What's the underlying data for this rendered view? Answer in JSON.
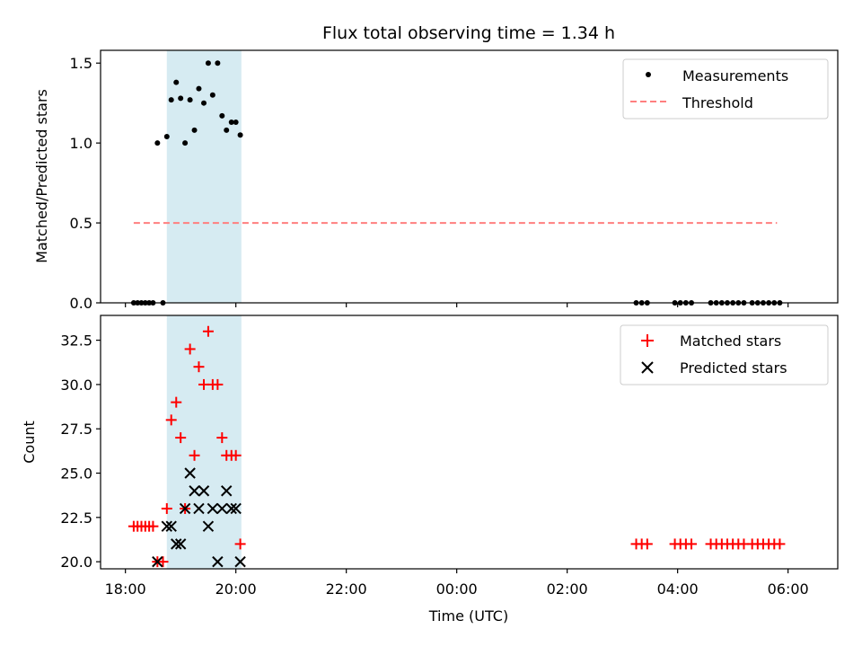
{
  "chart_data": {
    "title": "Flux total observing time = 1.34 h",
    "xlabel": "Time (UTC)",
    "x_unit": "hours since 18:00 UTC",
    "x_ticks": [
      {
        "value": 0,
        "label": "18:00"
      },
      {
        "value": 2,
        "label": "20:00"
      },
      {
        "value": 4,
        "label": "22:00"
      },
      {
        "value": 6,
        "label": "00:00"
      },
      {
        "value": 8,
        "label": "02:00"
      },
      {
        "value": 10,
        "label": "04:00"
      },
      {
        "value": 12,
        "label": "06:00"
      }
    ],
    "xlim": [
      -0.45,
      12.9
    ],
    "highlight_span": {
      "x0": 0.75,
      "x1": 2.1,
      "color": "#add8e6"
    },
    "panels": [
      {
        "type": "scatter",
        "ylabel": "Matched/Predicted stars",
        "ylim": [
          0,
          1.58
        ],
        "y_ticks": [
          {
            "value": 0,
            "label": "0.0"
          },
          {
            "value": 0.5,
            "label": "0.5"
          },
          {
            "value": 1.0,
            "label": "1.0"
          },
          {
            "value": 1.5,
            "label": "1.5"
          }
        ],
        "threshold": {
          "name": "Threshold",
          "value": 0.5,
          "x0": 0.15,
          "x1": 11.8,
          "color": "#ff7f7f"
        },
        "series": [
          {
            "name": "Measurements",
            "marker": "dot",
            "color": "#000000",
            "points": [
              [
                0.15,
                0
              ],
              [
                0.22,
                0
              ],
              [
                0.29,
                0
              ],
              [
                0.36,
                0
              ],
              [
                0.43,
                0
              ],
              [
                0.5,
                0
              ],
              [
                0.68,
                0
              ],
              [
                0.58,
                1.0
              ],
              [
                0.75,
                1.04
              ],
              [
                0.83,
                1.27
              ],
              [
                0.92,
                1.38
              ],
              [
                1.0,
                1.28
              ],
              [
                1.08,
                1.0
              ],
              [
                1.17,
                1.27
              ],
              [
                1.25,
                1.08
              ],
              [
                1.33,
                1.34
              ],
              [
                1.42,
                1.25
              ],
              [
                1.5,
                1.5
              ],
              [
                1.58,
                1.3
              ],
              [
                1.67,
                1.5
              ],
              [
                1.75,
                1.17
              ],
              [
                1.83,
                1.08
              ],
              [
                1.92,
                1.13
              ],
              [
                2.0,
                1.13
              ],
              [
                2.08,
                1.05
              ],
              [
                9.25,
                0
              ],
              [
                9.35,
                0
              ],
              [
                9.45,
                0
              ],
              [
                9.95,
                0
              ],
              [
                10.05,
                0
              ],
              [
                10.15,
                0
              ],
              [
                10.25,
                0
              ],
              [
                10.6,
                0
              ],
              [
                10.7,
                0
              ],
              [
                10.8,
                0
              ],
              [
                10.9,
                0
              ],
              [
                11.0,
                0
              ],
              [
                11.1,
                0
              ],
              [
                11.2,
                0
              ],
              [
                11.35,
                0
              ],
              [
                11.45,
                0
              ],
              [
                11.55,
                0
              ],
              [
                11.65,
                0
              ],
              [
                11.75,
                0
              ],
              [
                11.85,
                0
              ]
            ]
          }
        ]
      },
      {
        "type": "scatter",
        "ylabel": "Count",
        "ylim": [
          19.6,
          33.9
        ],
        "y_ticks": [
          {
            "value": 20,
            "label": "20.0"
          },
          {
            "value": 22.5,
            "label": "22.5"
          },
          {
            "value": 25,
            "label": "25.0"
          },
          {
            "value": 27.5,
            "label": "27.5"
          },
          {
            "value": 30,
            "label": "30.0"
          },
          {
            "value": 32.5,
            "label": "32.5"
          }
        ],
        "series": [
          {
            "name": "Matched stars",
            "marker": "plus",
            "color": "#ff0000",
            "points": [
              [
                0.15,
                22
              ],
              [
                0.22,
                22
              ],
              [
                0.29,
                22
              ],
              [
                0.36,
                22
              ],
              [
                0.43,
                22
              ],
              [
                0.5,
                22
              ],
              [
                0.58,
                20
              ],
              [
                0.68,
                20
              ],
              [
                0.75,
                23
              ],
              [
                0.83,
                28
              ],
              [
                0.92,
                29
              ],
              [
                1.0,
                27
              ],
              [
                1.08,
                23
              ],
              [
                1.17,
                32
              ],
              [
                1.25,
                26
              ],
              [
                1.33,
                31
              ],
              [
                1.42,
                30
              ],
              [
                1.5,
                33
              ],
              [
                1.58,
                30
              ],
              [
                1.67,
                30
              ],
              [
                1.75,
                27
              ],
              [
                1.83,
                26
              ],
              [
                1.92,
                26
              ],
              [
                2.0,
                26
              ],
              [
                2.08,
                21
              ],
              [
                9.25,
                21
              ],
              [
                9.35,
                21
              ],
              [
                9.45,
                21
              ],
              [
                9.95,
                21
              ],
              [
                10.05,
                21
              ],
              [
                10.15,
                21
              ],
              [
                10.25,
                21
              ],
              [
                10.6,
                21
              ],
              [
                10.7,
                21
              ],
              [
                10.8,
                21
              ],
              [
                10.9,
                21
              ],
              [
                11.0,
                21
              ],
              [
                11.1,
                21
              ],
              [
                11.2,
                21
              ],
              [
                11.35,
                21
              ],
              [
                11.45,
                21
              ],
              [
                11.55,
                21
              ],
              [
                11.65,
                21
              ],
              [
                11.75,
                21
              ],
              [
                11.85,
                21
              ]
            ]
          },
          {
            "name": "Predicted stars",
            "marker": "x",
            "color": "#000000",
            "points": [
              [
                0.58,
                20
              ],
              [
                0.75,
                22
              ],
              [
                0.83,
                22
              ],
              [
                0.92,
                21
              ],
              [
                1.0,
                21
              ],
              [
                1.08,
                23
              ],
              [
                1.17,
                25
              ],
              [
                1.25,
                24
              ],
              [
                1.33,
                23
              ],
              [
                1.42,
                24
              ],
              [
                1.5,
                22
              ],
              [
                1.58,
                23
              ],
              [
                1.67,
                20
              ],
              [
                1.75,
                23
              ],
              [
                1.83,
                24
              ],
              [
                1.92,
                23
              ],
              [
                2.0,
                23
              ],
              [
                2.08,
                20
              ]
            ]
          }
        ]
      }
    ]
  }
}
